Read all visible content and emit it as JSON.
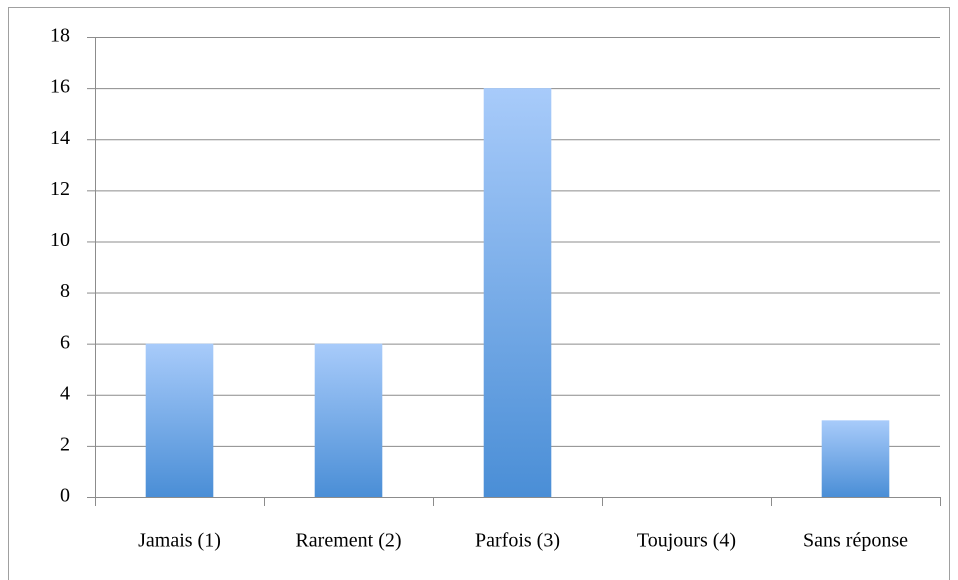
{
  "chart_data": {
    "type": "bar",
    "categories": [
      "Jamais (1)",
      "Rarement (2)",
      "Parfois (3)",
      "Toujours (4)",
      "Sans réponse"
    ],
    "values": [
      6,
      6,
      16,
      0,
      3
    ],
    "color": "#4a8ed6",
    "color_top": "#a8cbfa",
    "ylim": [
      0,
      18
    ],
    "yticks": [
      0,
      2,
      4,
      6,
      8,
      10,
      12,
      14,
      16,
      18
    ],
    "grid": true
  }
}
